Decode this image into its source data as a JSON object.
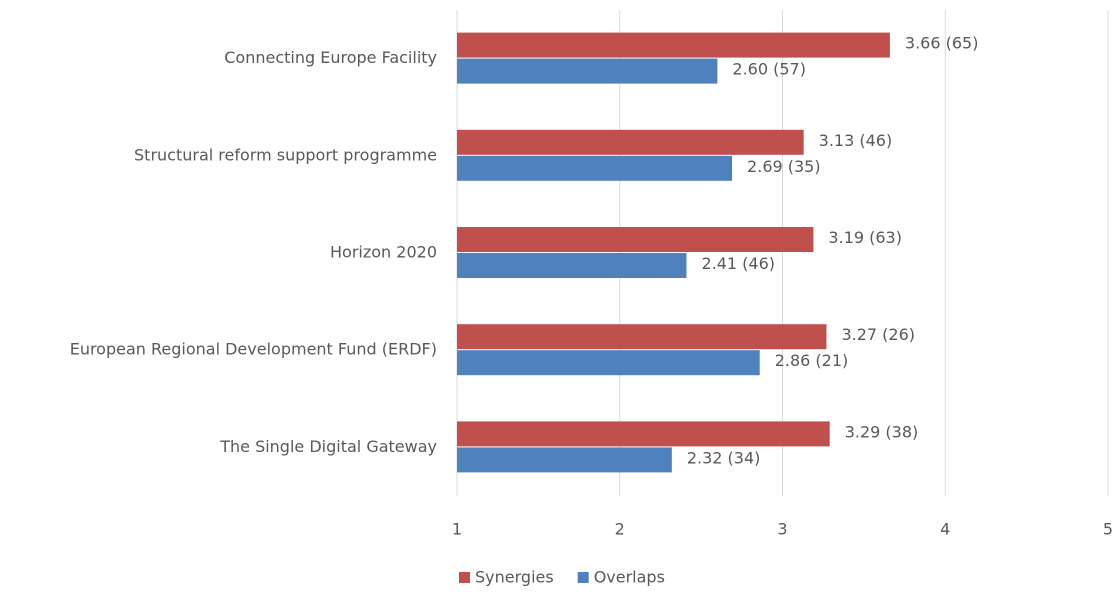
{
  "chart_data": {
    "type": "hbar",
    "categories": [
      "Connecting Europe Facility",
      "Structural reform support programme",
      "Horizon 2020",
      "European Regional Development Fund (ERDF)",
      "The Single Digital Gateway"
    ],
    "series": [
      {
        "name": "Synergies",
        "color": "#c0504d",
        "values": [
          3.66,
          3.13,
          3.19,
          3.27,
          3.29
        ],
        "value_labels": [
          "3.66 (65)",
          "3.13 (46)",
          "3.19 (63)",
          "3.27 (26)",
          "3.29 (38)"
        ]
      },
      {
        "name": "Overlaps",
        "color": "#4f81bd",
        "values": [
          2.6,
          2.69,
          2.41,
          2.86,
          2.32
        ],
        "value_labels": [
          "2.60 (57)",
          "2.69 (35)",
          "2.41 (46)",
          "2.86 (21)",
          "2.32 (34)"
        ]
      }
    ],
    "xlim": [
      1,
      5
    ],
    "xticks": [
      1,
      2,
      3,
      4,
      5
    ],
    "grid": true,
    "legend": "bottom"
  }
}
